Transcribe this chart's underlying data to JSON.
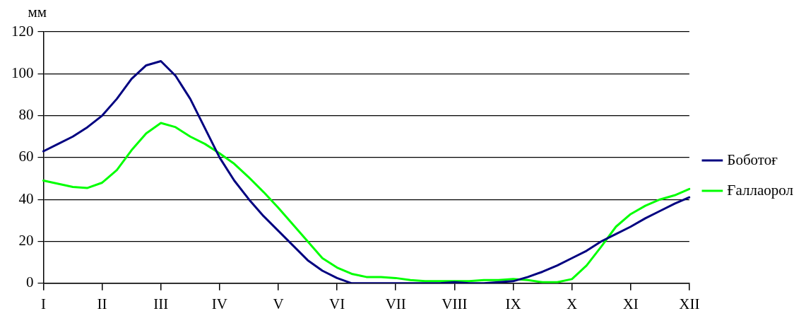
{
  "chart_data": {
    "type": "line",
    "ylabel": "мм",
    "categories": [
      "I",
      null,
      null,
      null,
      "II",
      null,
      null,
      null,
      "III",
      null,
      null,
      null,
      "IV",
      null,
      null,
      null,
      "V",
      null,
      null,
      null,
      "VI",
      null,
      null,
      null,
      "VII",
      null,
      null,
      null,
      "VIII",
      null,
      null,
      null,
      "IX",
      null,
      null,
      null,
      "X",
      null,
      null,
      null,
      "XI",
      null,
      null,
      null,
      "XII"
    ],
    "ylim": [
      0,
      120
    ],
    "yticks": [
      0,
      20,
      40,
      60,
      80,
      100,
      120
    ],
    "grid": "y",
    "legend": "right",
    "marker": "none",
    "line_style": "solid",
    "series": [
      {
        "name": "Боботоғ",
        "color": "#000080",
        "values": [
          63,
          66.5,
          70,
          74.5,
          80,
          88,
          97.5,
          104,
          106,
          99,
          88,
          74,
          60,
          49,
          40,
          32,
          25,
          18,
          11,
          6,
          2.5,
          0,
          0,
          0,
          0,
          0,
          0,
          0,
          0.5,
          0,
          0,
          0.5,
          1,
          3,
          5.5,
          8.5,
          12,
          15.5,
          20,
          23.5,
          27,
          31,
          34.5,
          38,
          41
        ]
      },
      {
        "name": "Ғаллаорол",
        "color": "#00ff00",
        "values": [
          49,
          47.5,
          46,
          45.5,
          48,
          54,
          63.5,
          71.5,
          76.5,
          74.5,
          70,
          66.5,
          62,
          57,
          50.5,
          43.5,
          36,
          28,
          20,
          12,
          7.5,
          4.5,
          3,
          3,
          2.5,
          1.5,
          1,
          1,
          1,
          1,
          1.5,
          1.5,
          2,
          1.5,
          0.5,
          0.5,
          2,
          8.5,
          17.5,
          27,
          33,
          37,
          40,
          42,
          45
        ]
      }
    ]
  }
}
